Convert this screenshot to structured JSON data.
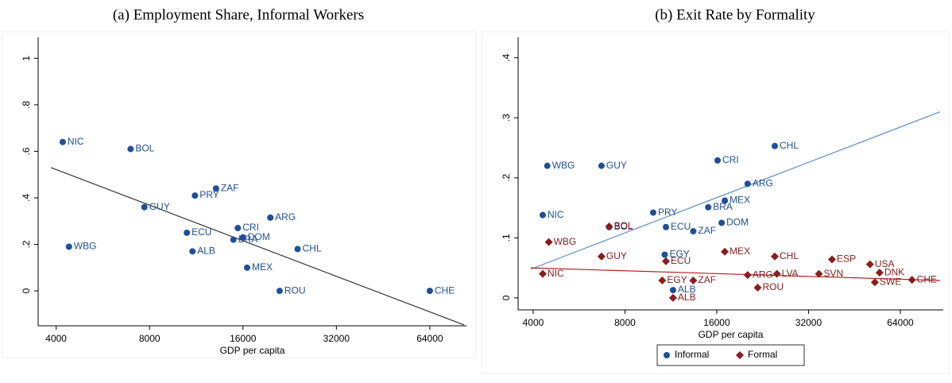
{
  "chart_data": [
    {
      "type": "scatter",
      "title": "(a) Employment Share, Informal Workers",
      "x_label": "GDP per capita",
      "xscale": "log",
      "xlim": [
        3500,
        84000
      ],
      "xticks": [
        4000,
        8000,
        16000,
        32000,
        64000
      ],
      "ylim": [
        -0.15,
        1.09
      ],
      "yticks": [
        0,
        {
          "value": 0.2,
          "label": ".2"
        },
        {
          "value": 0.4,
          "label": ".4"
        },
        {
          "value": 0.6,
          "label": ".6"
        },
        {
          "value": 0.8,
          "label": ".8"
        },
        1
      ],
      "series": [
        {
          "color": "#1f4e9a",
          "marker": "circle",
          "labels": [
            "NIC",
            "BOL",
            "GUY",
            "WBG",
            "ECU",
            "ALB",
            "PRY",
            "ZAF",
            "CRI",
            "DOM",
            "BRA",
            "ARG",
            "CHL",
            "MEX",
            "ROU",
            "CHE"
          ],
          "x": [
            4200,
            6950,
            7700,
            4400,
            10550,
            11000,
            11200,
            13100,
            15400,
            16000,
            14900,
            19600,
            24000,
            16500,
            21000,
            64000
          ],
          "values": [
            0.64,
            0.61,
            0.36,
            0.19,
            0.25,
            0.17,
            0.41,
            0.44,
            0.27,
            0.23,
            0.22,
            0.315,
            0.18,
            0.1,
            0,
            0
          ]
        }
      ],
      "fit_lines": [
        {
          "color": "#333333",
          "x": [
            3850,
            82400
          ],
          "values": [
            0.53,
            -0.146
          ]
        }
      ]
    },
    {
      "type": "scatter",
      "title": "(b) Exit Rate by Formality",
      "x_label": "GDP per capita",
      "xscale": "log",
      "xlim": [
        3570,
        88500
      ],
      "xticks": [
        4000,
        8000,
        16000,
        32000,
        64000
      ],
      "ylim": [
        -0.02,
        0.434
      ],
      "yticks": [
        0,
        {
          "value": 0.1,
          "label": ".1"
        },
        {
          "value": 0.2,
          "label": ".2"
        },
        {
          "value": 0.3,
          "label": ".3"
        },
        {
          "value": 0.4,
          "label": ".4"
        }
      ],
      "legend": "bottom",
      "series": [
        {
          "name": "Informal",
          "color": "#1f4e9a",
          "marker": "circle",
          "labels": [
            "WBG",
            "GUY",
            "CRI",
            "CHL",
            "ARG",
            "MEX",
            "BRA",
            "DOM",
            "PRY",
            "NIC",
            "BOL",
            "ECU",
            "ZAF",
            "EGY",
            "ALB"
          ],
          "x": [
            4450,
            6700,
            16100,
            24800,
            20200,
            17000,
            15000,
            16600,
            9900,
            4300,
            7100,
            10900,
            13400,
            10800,
            11500
          ],
          "values": [
            0.22,
            0.22,
            0.229,
            0.253,
            0.19,
            0.162,
            0.151,
            0.125,
            0.142,
            0.138,
            0.118,
            0.118,
            0.111,
            0.072,
            0.013
          ]
        },
        {
          "name": "Formal",
          "color": "#8b1c1c",
          "marker": "diamond",
          "labels": [
            "BOL",
            "WBG",
            "NIC",
            "GUY",
            "ECU",
            "MEX",
            "CHL",
            "ESP",
            "USA",
            "DNK",
            "SVN",
            "LVA",
            "ARG",
            "ROU",
            "SWE",
            "CHE",
            "EGY",
            "ZAF",
            "ALB"
          ],
          "x": [
            7100,
            4500,
            4300,
            6700,
            10900,
            17000,
            24800,
            38200,
            50900,
            54700,
            34600,
            25200,
            20200,
            21800,
            52800,
            69900,
            10600,
            13400,
            11500
          ],
          "values": [
            0.119,
            0.093,
            0.04,
            0.069,
            0.061,
            0.077,
            0.069,
            0.064,
            0.056,
            0.042,
            0.04,
            0.04,
            0.038,
            0.017,
            0.026,
            0.03,
            0.029,
            0.029,
            0.0
          ]
        }
      ],
      "fit_lines": [
        {
          "color": "#5b8fd0",
          "x": [
            3930,
            86400
          ],
          "values": [
            0.048,
            0.31
          ]
        },
        {
          "color": "#b22222",
          "x": [
            3930,
            86400
          ],
          "values": [
            0.05,
            0.029
          ]
        }
      ]
    }
  ]
}
